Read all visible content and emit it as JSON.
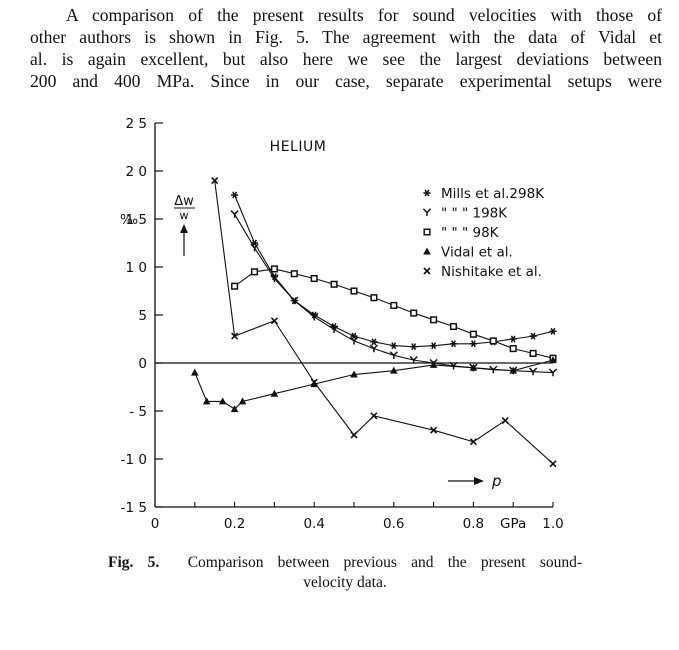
{
  "paragraph": {
    "lines": [
      "A comparison of the present results for sound velocities with those of",
      "other authors is shown in Fig. 5. The agreement with the data of Vidal et",
      "al. is again excellent, but also here we see the largest deviations between",
      "200 and 400 MPa. Since in our case, separate experimental setups were"
    ]
  },
  "chart_data": {
    "type": "line",
    "title": "HELIUM",
    "ylabel_main": "Δw",
    "ylabel_den": "w",
    "yunit": "‰",
    "xlabel": "p",
    "xlim": [
      0,
      1.0
    ],
    "ylim": [
      -15,
      25
    ],
    "xticks": [
      {
        "v": 0,
        "label": "0"
      },
      {
        "v": 0.2,
        "label": "0.2"
      },
      {
        "v": 0.4,
        "label": "0.4"
      },
      {
        "v": 0.6,
        "label": "0.6"
      },
      {
        "v": 0.8,
        "label": "0.8"
      },
      {
        "v": 0.9,
        "label": "GPa"
      },
      {
        "v": 1.0,
        "label": "1.0"
      }
    ],
    "xtick_marks": [
      0,
      0.1,
      0.2,
      0.3,
      0.4,
      0.5,
      0.6,
      0.7,
      0.8,
      0.9,
      1.0
    ],
    "yticks": [
      {
        "v": 25,
        "label": "2 5"
      },
      {
        "v": 20,
        "label": "2 0"
      },
      {
        "v": 15,
        "label": "1 5"
      },
      {
        "v": 10,
        "label": "1 0"
      },
      {
        "v": 5,
        "label": "5"
      },
      {
        "v": 0,
        "label": "0"
      },
      {
        "v": -5,
        "label": "- 5"
      },
      {
        "v": -10,
        "label": "-1 0"
      },
      {
        "v": -15,
        "label": "-1 5"
      }
    ],
    "zero_line": true,
    "legend": [
      {
        "marker": "star",
        "text": "Mills et al.298K"
      },
      {
        "marker": "y",
        "text": "\"     \"   \"  198K"
      },
      {
        "marker": "square",
        "text": "\"     \"   \"     98K"
      },
      {
        "marker": "triangle",
        "text": "Vidal et al."
      },
      {
        "marker": "xmark",
        "text": "Nishitake et al."
      }
    ],
    "series": [
      {
        "name": "Mills et al.298K",
        "marker": "star",
        "x": [
          0.2,
          0.25,
          0.3,
          0.35,
          0.4,
          0.45,
          0.5,
          0.55,
          0.6,
          0.65,
          0.7,
          0.75,
          0.8,
          0.85,
          0.9,
          0.95,
          1.0
        ],
        "y": [
          17.5,
          12.5,
          9.0,
          6.5,
          5.0,
          3.8,
          2.8,
          2.2,
          1.8,
          1.7,
          1.8,
          2.0,
          2.0,
          2.2,
          2.5,
          2.8,
          3.3
        ]
      },
      {
        "name": "198K",
        "marker": "y",
        "x": [
          0.2,
          0.25,
          0.3,
          0.35,
          0.4,
          0.45,
          0.5,
          0.55,
          0.6,
          0.65,
          0.7,
          0.75,
          0.8,
          0.85,
          0.9,
          0.95,
          1.0
        ],
        "y": [
          15.5,
          12.0,
          8.8,
          6.5,
          4.8,
          3.5,
          2.3,
          1.5,
          0.8,
          0.3,
          0.0,
          -0.3,
          -0.5,
          -0.7,
          -0.8,
          -0.9,
          -1.0
        ]
      },
      {
        "name": "98K",
        "marker": "square",
        "x": [
          0.2,
          0.25,
          0.3,
          0.35,
          0.4,
          0.45,
          0.5,
          0.55,
          0.6,
          0.65,
          0.7,
          0.75,
          0.8,
          0.85,
          0.9,
          0.95,
          1.0
        ],
        "y": [
          8.0,
          9.5,
          9.8,
          9.3,
          8.8,
          8.2,
          7.5,
          6.8,
          6.0,
          5.2,
          4.5,
          3.8,
          3.0,
          2.3,
          1.5,
          1.0,
          0.5
        ]
      },
      {
        "name": "Vidal et al.",
        "marker": "triangle",
        "x": [
          0.1,
          0.13,
          0.17,
          0.2,
          0.22,
          0.3,
          0.4,
          0.5,
          0.6,
          0.7,
          0.8,
          0.9,
          1.0
        ],
        "y": [
          -1.0,
          -4.0,
          -4.0,
          -4.8,
          -4.0,
          -3.2,
          -2.2,
          -1.2,
          -0.8,
          -0.2,
          -0.5,
          -0.8,
          0.3
        ]
      },
      {
        "name": "Nishitake et al.",
        "marker": "xmark",
        "x": [
          0.15,
          0.2,
          0.3,
          0.4,
          0.5,
          0.55,
          0.7,
          0.8,
          0.88,
          1.0
        ],
        "y": [
          19.0,
          2.8,
          4.4,
          -2.0,
          -7.5,
          -5.5,
          -7.0,
          -8.2,
          -6.0,
          -10.5
        ]
      }
    ]
  },
  "caption": {
    "label": "Fig. 5.",
    "line1": "Comparison between previous and the present sound-",
    "line2": "velocity data."
  }
}
